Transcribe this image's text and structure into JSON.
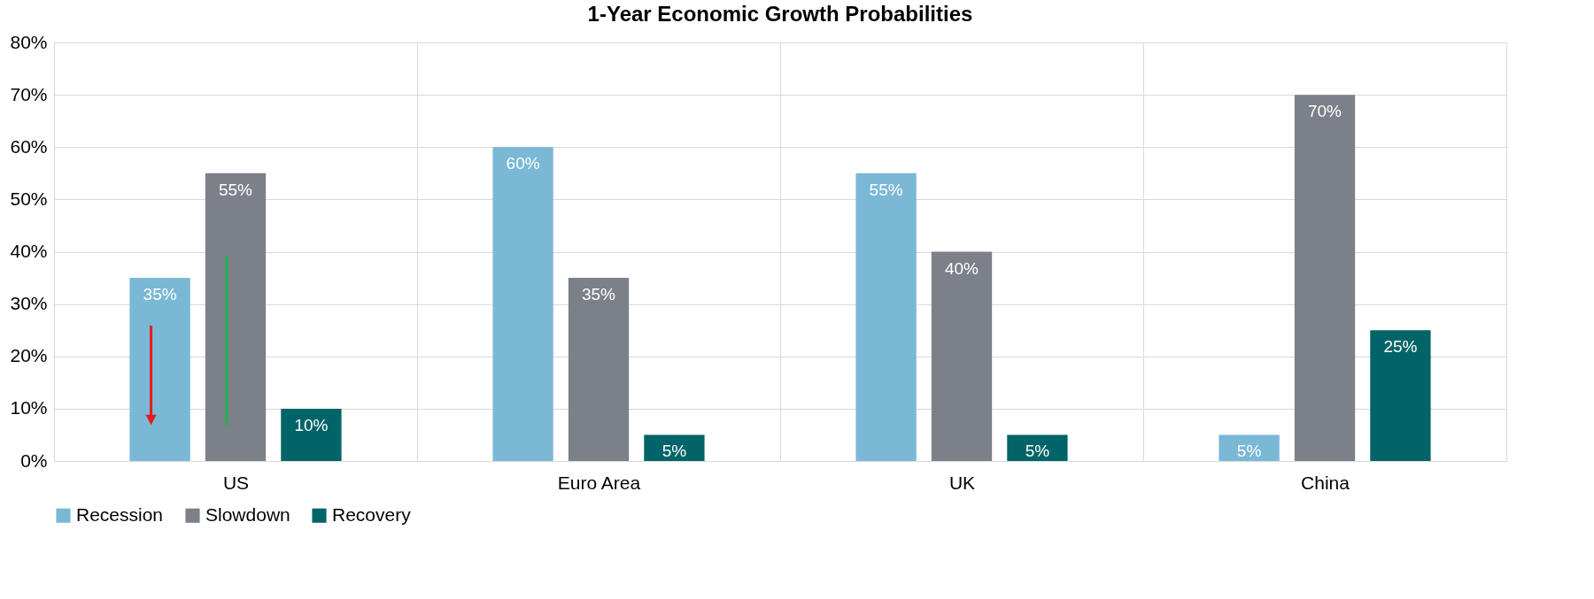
{
  "chart_data": {
    "type": "bar",
    "title": "1-Year Economic Growth Probabilities",
    "categories": [
      "US",
      "Euro Area",
      "UK",
      "China"
    ],
    "series": [
      {
        "name": "Recession",
        "color": "#7ab8d6",
        "values": [
          35,
          60,
          55,
          5
        ],
        "value_labels": [
          "35%",
          "60%",
          "55%",
          "5%"
        ]
      },
      {
        "name": "Slowdown",
        "color": "#7b8089",
        "values": [
          55,
          35,
          40,
          70
        ],
        "value_labels": [
          "55%",
          "35%",
          "40%",
          "70%"
        ]
      },
      {
        "name": "Recovery",
        "color": "#006468",
        "values": [
          10,
          5,
          5,
          25
        ],
        "value_labels": [
          "10%",
          "5%",
          "5%",
          "25%"
        ]
      }
    ],
    "ylim": [
      0,
      80
    ],
    "yticks": [
      {
        "value": 0,
        "label": "0%"
      },
      {
        "value": 10,
        "label": "10%"
      },
      {
        "value": 20,
        "label": "20%"
      },
      {
        "value": 30,
        "label": "30%"
      },
      {
        "value": 40,
        "label": "40%"
      },
      {
        "value": 50,
        "label": "50%"
      },
      {
        "value": 60,
        "label": "60%"
      },
      {
        "value": 70,
        "label": "70%"
      },
      {
        "value": 80,
        "label": "80%"
      }
    ],
    "grid": true,
    "legend": "bottom"
  }
}
